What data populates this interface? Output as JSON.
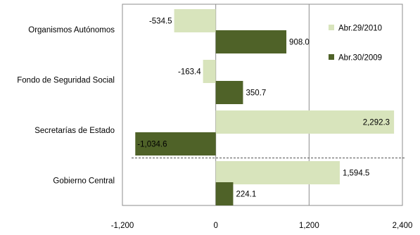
{
  "chart_data": {
    "type": "bar",
    "orientation": "horizontal",
    "categories": [
      "Organismos Autónomos",
      "Fondo de Seguridad Social",
      "Secretarías de Estado",
      "Gobierno Central"
    ],
    "series": [
      {
        "name": "Abr.29/2010",
        "color": "#d8e4bc",
        "values": [
          -534.5,
          -163.4,
          2292.3,
          1594.5
        ]
      },
      {
        "name": "Abr.30/2009",
        "color": "#4f6228",
        "values": [
          908.0,
          350.7,
          -1034.6,
          224.1
        ]
      }
    ],
    "data_labels": [
      [
        "-534.5",
        "-163.4",
        "2,292.3",
        "1,594.5"
      ],
      [
        "908.0",
        "350.7",
        "-1,034.6",
        "224.1"
      ]
    ],
    "xlim": [
      -1200,
      2400
    ],
    "xticks": [
      -1200,
      0,
      1200,
      2400
    ],
    "xtick_labels": [
      "-1,200",
      "0",
      "1,200",
      "2,400"
    ],
    "gridlines": "vertical",
    "legend": "top-right",
    "divider_between": [
      "Secretarías de Estado",
      "Gobierno Central"
    ],
    "title": "",
    "xlabel": "",
    "ylabel": ""
  }
}
